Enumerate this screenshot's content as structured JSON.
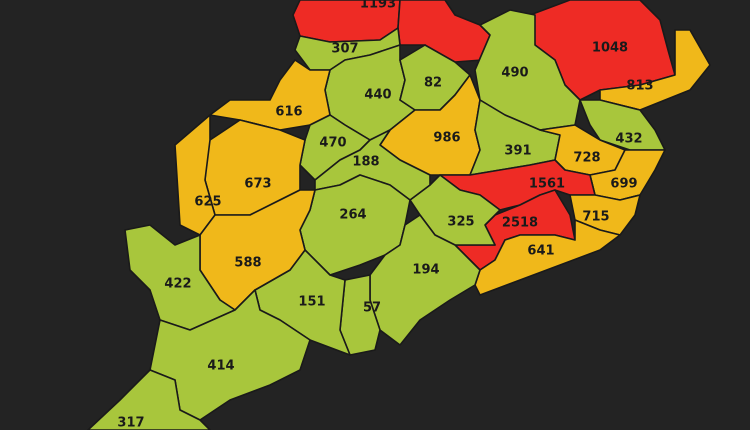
{
  "legend_colors": {
    "high": "#ee2b25",
    "medium": "#f0b81a",
    "low": "#a8c63c"
  },
  "districts": [
    {
      "value": "1193",
      "level": "high"
    },
    {
      "value": "",
      "level": "high"
    },
    {
      "value": "1048",
      "level": "high"
    },
    {
      "value": "813",
      "level": "medium"
    },
    {
      "value": "490",
      "level": "low"
    },
    {
      "value": "307",
      "level": "low"
    },
    {
      "value": "440",
      "level": "low"
    },
    {
      "value": "82",
      "level": "low"
    },
    {
      "value": "616",
      "level": "medium"
    },
    {
      "value": "986",
      "level": "medium"
    },
    {
      "value": "391",
      "level": "low"
    },
    {
      "value": "432",
      "level": "low"
    },
    {
      "value": "728",
      "level": "medium"
    },
    {
      "value": "699",
      "level": "medium"
    },
    {
      "value": "1561",
      "level": "high"
    },
    {
      "value": "2518",
      "level": "high"
    },
    {
      "value": "715",
      "level": "medium"
    },
    {
      "value": "641",
      "level": "medium"
    },
    {
      "value": "325",
      "level": "low"
    },
    {
      "value": "470",
      "level": "low"
    },
    {
      "value": "188",
      "level": "low"
    },
    {
      "value": "264",
      "level": "low"
    },
    {
      "value": "194",
      "level": "low"
    },
    {
      "value": "57",
      "level": "low"
    },
    {
      "value": "151",
      "level": "low"
    },
    {
      "value": "673",
      "level": "medium"
    },
    {
      "value": "625",
      "level": "medium"
    },
    {
      "value": "588",
      "level": "medium"
    },
    {
      "value": "422",
      "level": "low"
    },
    {
      "value": "414",
      "level": "low"
    },
    {
      "value": "317",
      "level": "low"
    }
  ]
}
